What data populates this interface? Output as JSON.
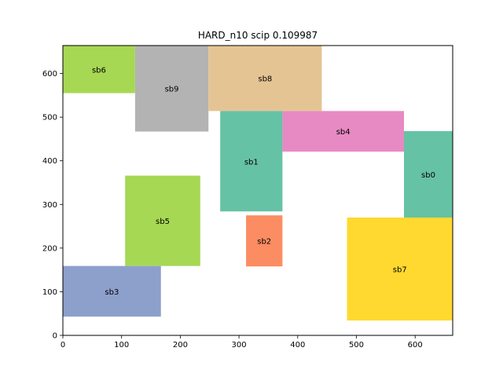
{
  "chart_data": {
    "type": "rectangle-packing",
    "title": "HARD_n10 scip 0.109987",
    "xlabel": "",
    "ylabel": "",
    "xlim": [
      0,
      664
    ],
    "ylim": [
      0,
      664
    ],
    "xticks": [
      0,
      100,
      200,
      300,
      400,
      500,
      600
    ],
    "yticks": [
      0,
      100,
      200,
      300,
      400,
      500,
      600
    ],
    "grid": false,
    "rectangles": [
      {
        "name": "sb6",
        "x": 0,
        "y": 555,
        "w": 123,
        "h": 109,
        "color": "#a6d854"
      },
      {
        "name": "sb9",
        "x": 123,
        "y": 467,
        "w": 125,
        "h": 197,
        "color": "#b3b3b3"
      },
      {
        "name": "sb8",
        "x": 248,
        "y": 514,
        "w": 193,
        "h": 150,
        "color": "#e5c494"
      },
      {
        "name": "sb1",
        "x": 268,
        "y": 284,
        "w": 106,
        "h": 230,
        "color": "#66c2a5"
      },
      {
        "name": "sb4",
        "x": 374,
        "y": 421,
        "w": 207,
        "h": 93,
        "color": "#e78ac3"
      },
      {
        "name": "sb0",
        "x": 581,
        "y": 269,
        "w": 83,
        "h": 199,
        "color": "#66c2a5"
      },
      {
        "name": "sb5",
        "x": 106,
        "y": 159,
        "w": 128,
        "h": 207,
        "color": "#a6d854"
      },
      {
        "name": "sb2",
        "x": 312,
        "y": 158,
        "w": 62,
        "h": 117,
        "color": "#fc8d62"
      },
      {
        "name": "sb3",
        "x": 0,
        "y": 43,
        "w": 167,
        "h": 116,
        "color": "#8da0cb"
      },
      {
        "name": "sb7",
        "x": 484,
        "y": 34,
        "w": 180,
        "h": 236,
        "color": "#ffd92f"
      }
    ]
  }
}
